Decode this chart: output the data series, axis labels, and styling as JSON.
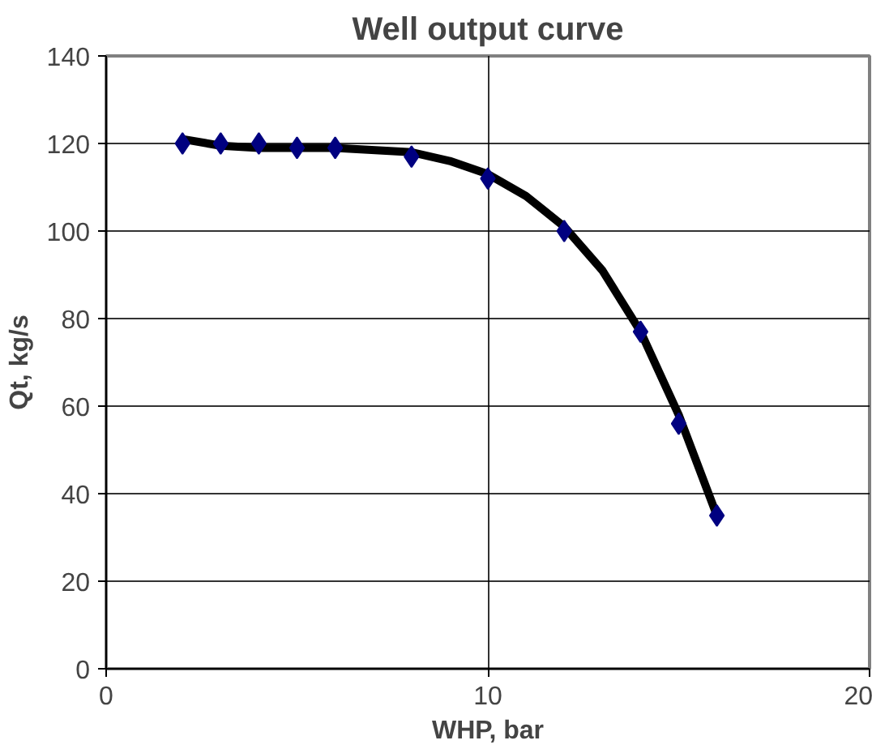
{
  "chart_data": {
    "type": "scatter",
    "title": "Well output curve",
    "xlabel": "WHP, bar",
    "ylabel": "Qt, kg/s",
    "xlim": [
      0,
      20
    ],
    "xticks": [
      0,
      10,
      20
    ],
    "ylim": [
      0,
      140
    ],
    "yticks": [
      0,
      20,
      40,
      60,
      80,
      100,
      120,
      140
    ],
    "grid": true,
    "series": [
      {
        "color": "#000080",
        "marker": "diamond",
        "x": [
          2,
          3,
          4,
          5,
          6,
          8,
          10,
          12,
          14,
          15,
          16
        ],
        "values": [
          120,
          120,
          120,
          119,
          119,
          117,
          112,
          100,
          77,
          56,
          35
        ]
      },
      {
        "type": "line",
        "color": "#000000",
        "marker": "none",
        "line_style": "solid",
        "x": [
          2,
          3,
          4,
          6,
          8,
          9,
          10,
          11,
          12,
          13,
          14,
          15,
          16
        ],
        "values": [
          121,
          119.5,
          119,
          119,
          118,
          116,
          113,
          108,
          101,
          91,
          77,
          58,
          35
        ]
      }
    ]
  }
}
